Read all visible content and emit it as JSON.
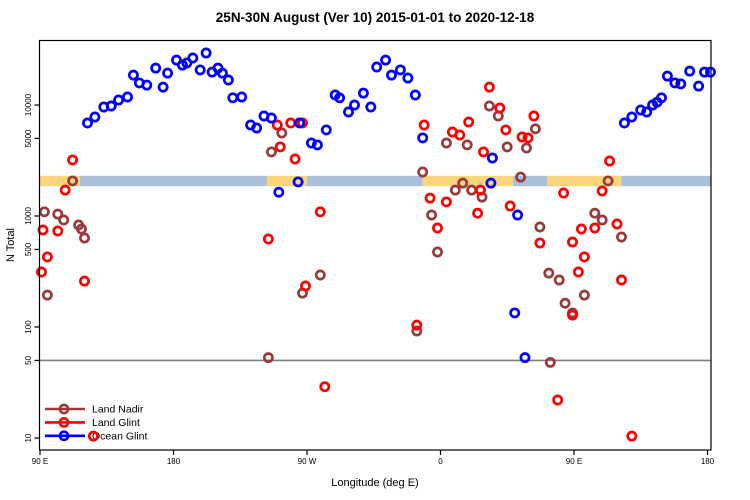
{
  "title": "25N-30N August (Ver 10)   2015-01-01 to 2020-12-18",
  "chart_data": {
    "type": "scatter",
    "title": "25N-30N August (Ver 10)   2015-01-01 to 2020-12-18",
    "xlabel": "Longitude (deg E)",
    "ylabel": "N Total",
    "x_axis": {
      "note": "longitude axis wraps across the dateline; positions are degrees along axis 90..540",
      "range": [
        89.7,
        542.5
      ],
      "ticks": [
        {
          "pos": 90,
          "label": "90 E"
        },
        {
          "pos": 180,
          "label": "180"
        },
        {
          "pos": 270,
          "label": "90 W"
        },
        {
          "pos": 360,
          "label": "0"
        },
        {
          "pos": 450,
          "label": "90 E"
        },
        {
          "pos": 540,
          "label": "180"
        }
      ]
    },
    "y_axis": {
      "scale": "log10",
      "range": [
        7.8,
        38500
      ],
      "ticks": [
        10,
        50,
        100,
        500,
        1000,
        5000,
        10000
      ]
    },
    "reference_line": {
      "value": 50,
      "color": "#7f7f7f"
    },
    "band": {
      "value_range": [
        1855,
        2300
      ],
      "colors": {
        "land": "#F9D57C",
        "ocean": "#A9BFDB"
      },
      "segments": [
        {
          "kind": "land",
          "from": 89.7,
          "to": 117
        },
        {
          "kind": "ocean",
          "from": 117,
          "to": 243
        },
        {
          "kind": "land",
          "from": 243,
          "to": 270
        },
        {
          "kind": "ocean",
          "from": 270,
          "to": 348
        },
        {
          "kind": "land",
          "from": 348,
          "to": 409
        },
        {
          "kind": "ocean",
          "from": 409,
          "to": 432
        },
        {
          "kind": "land",
          "from": 432,
          "to": 482
        },
        {
          "kind": "ocean",
          "from": 482,
          "to": 542.5
        }
      ]
    },
    "legend": {
      "position": "bottom-left",
      "items": [
        {
          "label": "Land Nadir",
          "color": "#9a3b3b"
        },
        {
          "label": "Land Glint",
          "color": "#ff0000"
        },
        {
          "label": "Ocean Glint",
          "color": "#0000ff"
        }
      ]
    },
    "series": [
      {
        "name": "Land Nadir",
        "color": "#9a3b3b",
        "points": [
          [
            93,
            1090
          ],
          [
            102,
            1040
          ],
          [
            106,
            920
          ],
          [
            112,
            2070
          ],
          [
            116,
            830
          ],
          [
            118,
            764
          ],
          [
            120,
            634
          ],
          [
            95,
            194
          ],
          [
            246,
            3780
          ],
          [
            253,
            5600
          ],
          [
            267,
            202
          ],
          [
            279,
            294
          ],
          [
            244,
            53
          ],
          [
            344,
            92
          ],
          [
            348,
            2490
          ],
          [
            354,
            1020
          ],
          [
            358,
            474
          ],
          [
            364,
            4550
          ],
          [
            370,
            1710
          ],
          [
            375,
            1980
          ],
          [
            378,
            4370
          ],
          [
            381,
            1710
          ],
          [
            388,
            1480
          ],
          [
            393,
            9790
          ],
          [
            399,
            7960
          ],
          [
            405,
            4190
          ],
          [
            414,
            2240
          ],
          [
            418,
            4100
          ],
          [
            424,
            6100
          ],
          [
            427,
            796
          ],
          [
            433,
            306
          ],
          [
            440,
            265
          ],
          [
            444,
            164
          ],
          [
            449,
            134
          ],
          [
            457,
            194
          ],
          [
            464,
            1060
          ],
          [
            469,
            920
          ],
          [
            473,
            2070
          ],
          [
            482,
            647
          ],
          [
            434,
            48
          ]
        ]
      },
      {
        "name": "Land Glint",
        "color": "#ff0000",
        "points": [
          [
            112,
            3200
          ],
          [
            107,
            1710
          ],
          [
            92,
            748
          ],
          [
            102,
            733
          ],
          [
            95,
            428
          ],
          [
            91,
            313
          ],
          [
            120,
            259
          ],
          [
            126,
            10.4
          ],
          [
            250,
            6610
          ],
          [
            259,
            6890
          ],
          [
            267,
            6890
          ],
          [
            252,
            4190
          ],
          [
            262,
            3260
          ],
          [
            279,
            1090
          ],
          [
            244,
            621
          ],
          [
            269,
            234
          ],
          [
            282,
            29
          ],
          [
            349,
            6610
          ],
          [
            344,
            104
          ],
          [
            353,
            1450
          ],
          [
            364,
            1340
          ],
          [
            358,
            780
          ],
          [
            368,
            5710
          ],
          [
            373,
            5370
          ],
          [
            379,
            7030
          ],
          [
            385,
            1060
          ],
          [
            387,
            1710
          ],
          [
            389,
            3780
          ],
          [
            393,
            14500
          ],
          [
            400,
            9400
          ],
          [
            404,
            5960
          ],
          [
            407,
            1230
          ],
          [
            415,
            5150
          ],
          [
            419,
            5050
          ],
          [
            423,
            7960
          ],
          [
            443,
            1610
          ],
          [
            449,
            583
          ],
          [
            453,
            313
          ],
          [
            455,
            764
          ],
          [
            464,
            780
          ],
          [
            469,
            1680
          ],
          [
            474,
            3130
          ],
          [
            479,
            847
          ],
          [
            482,
            265
          ],
          [
            457,
            428
          ],
          [
            427,
            571
          ],
          [
            449,
            128
          ],
          [
            439,
            22
          ],
          [
            489,
            10.4
          ]
        ]
      },
      {
        "name": "Ocean Glint",
        "color": "#0000ff",
        "points": [
          [
            122,
            6890
          ],
          [
            127,
            7800
          ],
          [
            133,
            9590
          ],
          [
            138,
            9790
          ],
          [
            143,
            11100
          ],
          [
            149,
            11800
          ],
          [
            153,
            18600
          ],
          [
            157,
            15800
          ],
          [
            162,
            15100
          ],
          [
            168,
            21500
          ],
          [
            173,
            14500
          ],
          [
            176,
            19400
          ],
          [
            182,
            25400
          ],
          [
            186,
            22900
          ],
          [
            189,
            23900
          ],
          [
            193,
            26500
          ],
          [
            198,
            20700
          ],
          [
            202,
            29400
          ],
          [
            206,
            19800
          ],
          [
            210,
            21500
          ],
          [
            213,
            19400
          ],
          [
            217,
            16800
          ],
          [
            220,
            11600
          ],
          [
            226,
            11800
          ],
          [
            232,
            6610
          ],
          [
            236,
            6210
          ],
          [
            241,
            7960
          ],
          [
            246,
            7640
          ],
          [
            265,
            6890
          ],
          [
            273,
            4550
          ],
          [
            277,
            4370
          ],
          [
            283,
            5960
          ],
          [
            289,
            12300
          ],
          [
            292,
            11600
          ],
          [
            298,
            8650
          ],
          [
            302,
            10000
          ],
          [
            308,
            12800
          ],
          [
            313,
            9590
          ],
          [
            317,
            22000
          ],
          [
            323,
            25400
          ],
          [
            327,
            18600
          ],
          [
            333,
            20700
          ],
          [
            338,
            17500
          ],
          [
            343,
            12300
          ],
          [
            348,
            5050
          ],
          [
            251,
            1640
          ],
          [
            264,
            2030
          ],
          [
            394,
            1980
          ],
          [
            395,
            3330
          ],
          [
            410,
            134
          ],
          [
            412,
            1020
          ],
          [
            417,
            53
          ],
          [
            484,
            6890
          ],
          [
            489,
            7800
          ],
          [
            495,
            9010
          ],
          [
            499,
            8650
          ],
          [
            503,
            10000
          ],
          [
            506,
            10600
          ],
          [
            509,
            11600
          ],
          [
            513,
            18200
          ],
          [
            518,
            15800
          ],
          [
            522,
            15500
          ],
          [
            528,
            20200
          ],
          [
            534,
            14800
          ],
          [
            538,
            19800
          ],
          [
            542,
            19800
          ]
        ]
      }
    ]
  }
}
